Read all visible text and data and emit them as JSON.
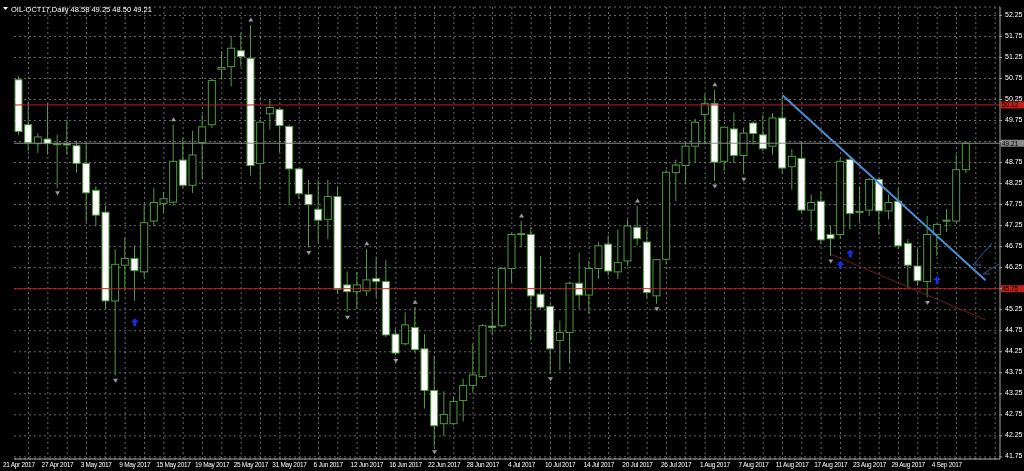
{
  "chart_data": {
    "type": "candlestick",
    "title": "OIL-OCT17,Daily 48.58 49.25 48.50 49.21",
    "categories": [
      "21 Apr 2017",
      null,
      null,
      null,
      "27 Apr 2017",
      null,
      null,
      null,
      "3 May 2017",
      null,
      null,
      null,
      "9 May 2017",
      null,
      null,
      null,
      "15 May 2017",
      null,
      null,
      null,
      "19 May 2017",
      null,
      null,
      null,
      "25 May 2017",
      null,
      null,
      null,
      "31 May 2017",
      null,
      null,
      null,
      "6 Jun 2017",
      null,
      null,
      null,
      "12 Jun 2017",
      null,
      null,
      null,
      "16 Jun 2017",
      null,
      null,
      null,
      "22 Jun 2017",
      null,
      null,
      null,
      "28 Jun 2017",
      null,
      null,
      null,
      "4 Jul 2017",
      null,
      null,
      null,
      "10 Jul 2017",
      null,
      null,
      null,
      "14 Jul 2017",
      null,
      null,
      null,
      "20 Jul 2017",
      null,
      null,
      null,
      "26 Jul 2017",
      null,
      null,
      null,
      "1 Aug 2017",
      null,
      null,
      null,
      "7 Aug 2017",
      null,
      null,
      null,
      "11 Aug 2017",
      null,
      null,
      null,
      "17 Aug 2017",
      null,
      null,
      null,
      "23 Aug 2017",
      null,
      null,
      null,
      "29 Aug 2017",
      null,
      null,
      null,
      "4 Sep 2017",
      null,
      null,
      null,
      null,
      null
    ],
    "ylim": [
      41.7,
      52.45
    ],
    "yticks": [
      41.75,
      42.25,
      42.75,
      43.25,
      43.75,
      44.25,
      44.75,
      45.25,
      {
        "value": 45.75,
        "label": null
      },
      46.25,
      46.75,
      47.25,
      47.75,
      48.25,
      48.75,
      {
        "value": 49.25,
        "label": null
      },
      49.75,
      50.25,
      50.75,
      51.25,
      51.75,
      52.25
    ],
    "grid": true,
    "legend": false,
    "series": [
      {
        "type": "candlestick",
        "color": "#4f9a3f",
        "ohlc": [
          [
            50.72,
            50.8,
            49.4,
            49.49
          ],
          [
            49.65,
            50.2,
            49.02,
            49.22
          ],
          [
            49.2,
            49.45,
            48.98,
            49.36
          ],
          [
            49.31,
            50.16,
            48.94,
            49.2
          ],
          [
            49.2,
            49.41,
            48.15,
            49.18
          ],
          [
            49.2,
            49.77,
            48.94,
            49.17
          ],
          [
            49.15,
            49.26,
            48.51,
            48.73
          ],
          [
            48.73,
            49.23,
            47.34,
            48.03
          ],
          [
            48.09,
            48.19,
            47.24,
            47.5
          ],
          [
            47.57,
            47.72,
            45.27,
            45.46
          ],
          [
            45.46,
            46.69,
            43.69,
            46.33
          ],
          [
            46.31,
            46.97,
            45.7,
            46.47
          ],
          [
            46.47,
            46.77,
            45.46,
            46.18
          ],
          [
            46.15,
            47.76,
            46.02,
            47.32
          ],
          [
            47.36,
            48.15,
            47.24,
            47.8
          ],
          [
            47.78,
            48.05,
            47.56,
            47.89
          ],
          [
            47.81,
            49.65,
            47.72,
            48.78
          ],
          [
            48.81,
            49.34,
            48.15,
            48.21
          ],
          [
            48.21,
            49.51,
            48.03,
            48.93
          ],
          [
            49.23,
            49.89,
            48.35,
            49.6
          ],
          [
            49.65,
            50.75,
            49.57,
            50.7
          ],
          [
            50.97,
            51.4,
            50.72,
            51.01
          ],
          [
            51.03,
            51.76,
            50.56,
            51.47
          ],
          [
            51.41,
            51.84,
            51.03,
            51.27
          ],
          [
            51.23,
            52.02,
            48.44,
            48.68
          ],
          [
            48.73,
            49.77,
            48.11,
            49.71
          ],
          [
            49.91,
            50.26,
            49.53,
            50.06
          ],
          [
            50.01,
            50.05,
            49.0,
            49.63
          ],
          [
            49.61,
            49.65,
            47.73,
            48.6
          ],
          [
            48.6,
            48.62,
            47.89,
            48.01
          ],
          [
            47.99,
            48.34,
            46.73,
            47.75
          ],
          [
            47.64,
            48.34,
            46.85,
            47.38
          ],
          [
            47.4,
            48.34,
            46.93,
            47.94
          ],
          [
            47.94,
            48.19,
            45.62,
            45.74
          ],
          [
            45.84,
            46.16,
            45.19,
            45.68
          ],
          [
            45.68,
            46.15,
            45.27,
            45.84
          ],
          [
            45.7,
            46.7,
            45.58,
            45.96
          ],
          [
            45.99,
            46.51,
            45.54,
            45.92
          ],
          [
            45.92,
            46.43,
            44.6,
            44.65
          ],
          [
            44.67,
            44.79,
            44.16,
            44.22
          ],
          [
            44.44,
            45.19,
            44.4,
            44.89
          ],
          [
            44.83,
            45.31,
            44.24,
            44.3
          ],
          [
            44.32,
            44.67,
            42.9,
            43.33
          ],
          [
            43.33,
            44.16,
            41.99,
            42.49
          ],
          [
            42.54,
            43.31,
            42.25,
            42.76
          ],
          [
            42.54,
            43.19,
            42.5,
            43.07
          ],
          [
            43.09,
            43.61,
            42.6,
            43.45
          ],
          [
            43.45,
            44.44,
            43.29,
            43.7
          ],
          [
            43.66,
            44.91,
            43.61,
            44.87
          ],
          [
            44.86,
            45.43,
            44.64,
            44.83
          ],
          [
            44.87,
            46.26,
            44.83,
            46.23
          ],
          [
            46.23,
            47.08,
            45.9,
            47.04
          ],
          [
            47.04,
            47.36,
            46.73,
            47.06
          ],
          [
            47.04,
            47.2,
            44.52,
            45.58
          ],
          [
            45.62,
            46.53,
            45.27,
            45.31
          ],
          [
            45.33,
            45.39,
            43.73,
            44.32
          ],
          [
            44.52,
            44.99,
            43.81,
            44.71
          ],
          [
            44.71,
            45.92,
            44.0,
            45.88
          ],
          [
            45.88,
            46.61,
            45.27,
            45.6
          ],
          [
            45.6,
            46.41,
            45.15,
            46.23
          ],
          [
            46.23,
            46.86,
            45.98,
            46.77
          ],
          [
            46.81,
            47.02,
            46.06,
            46.17
          ],
          [
            46.15,
            47.16,
            45.98,
            46.37
          ],
          [
            46.41,
            47.4,
            46.29,
            47.24
          ],
          [
            47.21,
            47.72,
            46.78,
            46.94
          ],
          [
            46.86,
            47.16,
            45.54,
            45.66
          ],
          [
            45.58,
            46.46,
            45.39,
            46.44
          ],
          [
            46.45,
            48.58,
            46.33,
            48.52
          ],
          [
            48.51,
            48.82,
            47.83,
            48.69
          ],
          [
            48.68,
            49.22,
            48.23,
            49.14
          ],
          [
            49.14,
            49.79,
            48.74,
            49.71
          ],
          [
            49.89,
            50.38,
            49.18,
            50.15
          ],
          [
            50.15,
            50.48,
            48.31,
            48.76
          ],
          [
            48.78,
            49.61,
            48.55,
            49.59
          ],
          [
            49.55,
            49.94,
            48.74,
            48.92
          ],
          [
            48.92,
            49.57,
            48.47,
            49.45
          ],
          [
            49.69,
            49.73,
            49.18,
            49.44
          ],
          [
            49.41,
            49.89,
            49.02,
            49.08
          ],
          [
            49.14,
            49.93,
            48.94,
            49.81
          ],
          [
            49.81,
            50.32,
            48.49,
            48.62
          ],
          [
            48.65,
            49.07,
            48.1,
            48.9
          ],
          [
            48.85,
            49.26,
            47.56,
            47.62
          ],
          [
            47.62,
            47.99,
            47.12,
            47.8
          ],
          [
            47.83,
            48.07,
            46.81,
            46.91
          ],
          [
            47.04,
            47.24,
            46.53,
            46.94
          ],
          [
            47.04,
            48.84,
            46.93,
            48.78
          ],
          [
            48.82,
            48.86,
            47.16,
            47.54
          ],
          [
            47.57,
            48.19,
            47.34,
            47.59
          ],
          [
            47.62,
            48.39,
            47.48,
            48.35
          ],
          [
            48.35,
            48.39,
            47.04,
            47.6
          ],
          [
            47.6,
            47.99,
            47.4,
            47.8
          ],
          [
            47.83,
            48.13,
            46.69,
            46.77
          ],
          [
            46.83,
            46.93,
            45.77,
            46.31
          ],
          [
            46.29,
            46.7,
            45.82,
            45.94
          ],
          [
            45.92,
            47.48,
            45.54,
            47.04
          ],
          [
            47.04,
            47.3,
            46.53,
            47.28
          ],
          [
            47.37,
            47.65,
            47.1,
            47.38
          ],
          [
            47.36,
            48.94,
            47.32,
            48.58
          ],
          [
            48.58,
            49.25,
            48.5,
            49.21
          ],
          null,
          null,
          null
        ]
      },
      {
        "type": "line",
        "color": "#4a8fd6",
        "values": [
          null,
          null,
          null,
          null,
          null,
          null,
          null,
          null,
          null,
          null,
          null,
          null,
          null,
          null,
          null,
          null,
          null,
          null,
          null,
          null,
          null,
          null,
          null,
          null,
          null,
          null,
          null,
          null,
          null,
          null,
          null,
          null,
          null,
          null,
          null,
          null,
          null,
          null,
          null,
          null,
          null,
          null,
          null,
          null,
          null,
          null,
          null,
          null,
          null,
          null,
          null,
          null,
          null,
          null,
          null,
          null,
          null,
          null,
          null,
          null,
          null,
          null,
          null,
          null,
          null,
          null,
          null,
          null,
          null,
          null,
          null,
          null,
          null,
          null,
          null,
          null,
          null,
          null,
          null,
          50.35,
          null,
          null,
          null,
          null,
          null,
          null,
          null,
          null,
          null,
          null,
          null,
          null,
          null,
          null,
          null,
          null,
          null,
          null,
          null,
          null,
          45.95,
          null
        ]
      },
      {
        "type": "line",
        "color": "#6b1f1f",
        "values": [
          null,
          null,
          null,
          null,
          null,
          null,
          null,
          null,
          null,
          null,
          null,
          null,
          null,
          null,
          null,
          null,
          null,
          null,
          null,
          null,
          null,
          null,
          null,
          null,
          null,
          null,
          null,
          null,
          null,
          null,
          null,
          null,
          null,
          null,
          null,
          null,
          null,
          null,
          null,
          null,
          null,
          null,
          null,
          null,
          null,
          null,
          null,
          null,
          null,
          null,
          null,
          null,
          null,
          null,
          null,
          null,
          null,
          null,
          null,
          null,
          null,
          null,
          null,
          null,
          null,
          null,
          null,
          null,
          null,
          null,
          null,
          null,
          null,
          null,
          null,
          null,
          null,
          null,
          null,
          null,
          null,
          null,
          null,
          null,
          46.57,
          null,
          null,
          null,
          null,
          null,
          null,
          null,
          null,
          null,
          null,
          null,
          null,
          null,
          null,
          null,
          45.01,
          null
        ]
      }
    ],
    "ref_lines": [
      {
        "axis": "y",
        "value": 50.12,
        "label": "50.12",
        "color": "#c0201a"
      },
      {
        "axis": "y",
        "value": 45.75,
        "label": "45.75",
        "color": "#c0201a"
      },
      {
        "axis": "y",
        "value": 49.21,
        "label": "49.21",
        "color": "#8a8a8a"
      }
    ]
  }
}
